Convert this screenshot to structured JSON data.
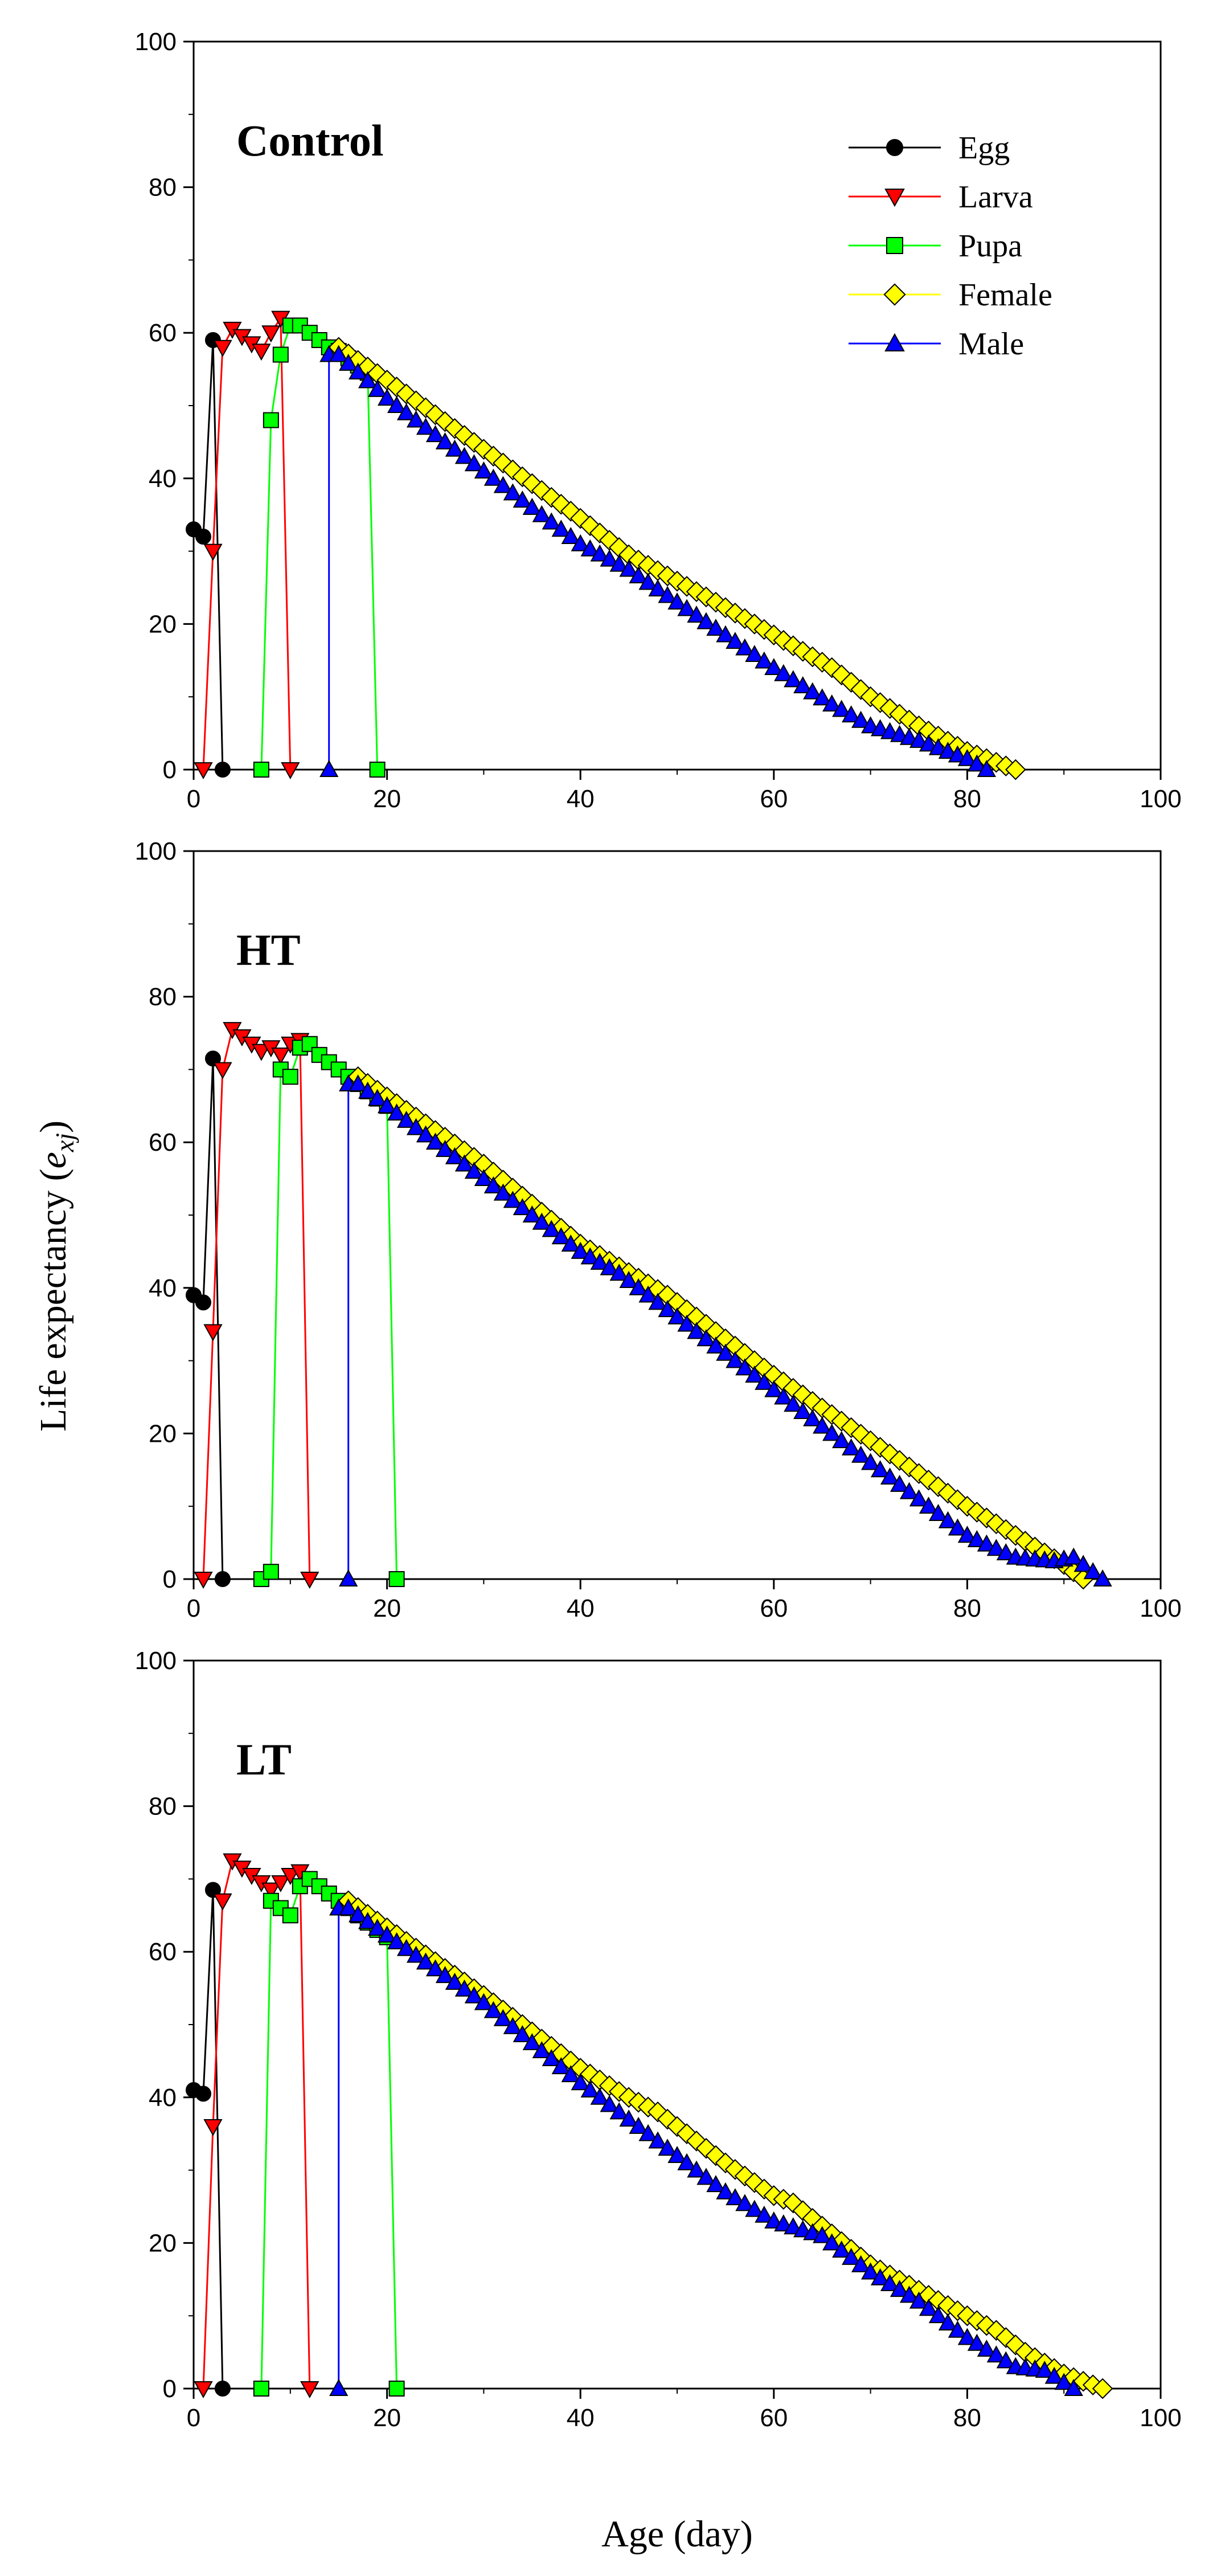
{
  "figure": {
    "xlabel": "Age (day)",
    "ylabel_prefix": "Life expectancy (",
    "ylabel_var": "e",
    "ylabel_sub": "xj",
    "ylabel_suffix": ")"
  },
  "legend": [
    {
      "name": "Egg",
      "color": "#000000",
      "marker": "circle"
    },
    {
      "name": "Larva",
      "color": "#ff0000",
      "marker": "triangle-down"
    },
    {
      "name": "Pupa",
      "color": "#00ff00",
      "marker": "square"
    },
    {
      "name": "Female",
      "color": "#ffff00",
      "marker": "diamond"
    },
    {
      "name": "Male",
      "color": "#0000ff",
      "marker": "triangle-up"
    }
  ],
  "chart_data": [
    {
      "type": "line",
      "title": "Control",
      "xlabel": "Age (day)",
      "ylabel": "Life expectancy (exj)",
      "xlim": [
        0,
        100
      ],
      "ylim": [
        0,
        100
      ],
      "xticks": [
        0,
        20,
        40,
        60,
        80,
        100
      ],
      "yticks": [
        0,
        20,
        40,
        60,
        80,
        100
      ],
      "series": [
        {
          "name": "Egg",
          "color": "#000000",
          "marker": "circle",
          "x": [
            0,
            1,
            2,
            3
          ],
          "y": [
            33,
            32,
            59,
            0
          ]
        },
        {
          "name": "Larva",
          "color": "#ff0000",
          "marker": "triangle-down",
          "x": [
            1,
            2,
            3,
            4,
            5,
            6,
            7,
            8,
            9,
            10
          ],
          "y": [
            0,
            30,
            58,
            60.5,
            59.5,
            58.5,
            57.5,
            60,
            62,
            0
          ]
        },
        {
          "name": "Pupa",
          "color": "#00ff00",
          "marker": "square",
          "x": [
            7,
            8,
            9,
            10,
            11,
            12,
            13,
            14,
            15,
            16,
            17,
            18,
            19
          ],
          "y": [
            0,
            48,
            57,
            61,
            61,
            60,
            59,
            58,
            57.5,
            56.5,
            55.5,
            54.5,
            0
          ]
        },
        {
          "name": "Female",
          "type": "linear_decline",
          "color": "#ffff00",
          "marker": "diamond",
          "start_age": 15,
          "end_age": 85,
          "anchors": [
            [
              15,
              58
            ],
            [
              20,
              53.5
            ],
            [
              30,
              44
            ],
            [
              39,
              35.5
            ],
            [
              45,
              29.5
            ],
            [
              54,
              23
            ],
            [
              60,
              18.5
            ],
            [
              66,
              14
            ],
            [
              70,
              10
            ],
            [
              75,
              6
            ],
            [
              80,
              2.5
            ],
            [
              85,
              0
            ]
          ]
        },
        {
          "name": "Male",
          "type": "linear_decline",
          "color": "#0000ff",
          "marker": "triangle-up",
          "start_age": 14,
          "end_age": 82,
          "pre_points": [
            [
              14,
              0
            ]
          ],
          "anchors": [
            [
              15,
              57
            ],
            [
              20,
              51
            ],
            [
              30,
              41
            ],
            [
              40,
              31
            ],
            [
              45,
              27.5
            ],
            [
              50,
              23
            ],
            [
              55,
              18.5
            ],
            [
              60,
              14
            ],
            [
              66,
              9
            ],
            [
              70,
              6
            ],
            [
              75,
              4
            ],
            [
              80,
              1.5
            ],
            [
              82,
              0
            ]
          ]
        }
      ]
    },
    {
      "type": "line",
      "title": "HT",
      "xlabel": "Age (day)",
      "ylabel": "Life expectancy (exj)",
      "xlim": [
        0,
        100
      ],
      "ylim": [
        0,
        100
      ],
      "xticks": [
        0,
        20,
        40,
        60,
        80,
        100
      ],
      "yticks": [
        0,
        20,
        40,
        60,
        80,
        100
      ],
      "series": [
        {
          "name": "Egg",
          "color": "#000000",
          "marker": "circle",
          "x": [
            0,
            1,
            2,
            3
          ],
          "y": [
            39,
            38,
            71.5,
            0
          ]
        },
        {
          "name": "Larva",
          "color": "#ff0000",
          "marker": "triangle-down",
          "x": [
            1,
            2,
            3,
            4,
            5,
            6,
            7,
            8,
            9,
            10,
            11,
            12
          ],
          "y": [
            0,
            34,
            70,
            75.5,
            74.5,
            73.5,
            72.5,
            73,
            72,
            73.5,
            74,
            0
          ]
        },
        {
          "name": "Pupa",
          "color": "#00ff00",
          "marker": "square",
          "x": [
            7,
            8,
            9,
            10,
            11,
            12,
            13,
            14,
            15,
            16,
            17,
            18,
            19,
            20,
            21
          ],
          "y": [
            0,
            1,
            70,
            69,
            73,
            73.5,
            72,
            71,
            70,
            69,
            68,
            67,
            66,
            65,
            0
          ]
        },
        {
          "name": "Female",
          "type": "linear_decline",
          "color": "#ffff00",
          "marker": "diamond",
          "start_age": 17,
          "end_age": 92,
          "anchors": [
            [
              17,
              69
            ],
            [
              30,
              57
            ],
            [
              40,
              46
            ],
            [
              49,
              39
            ],
            [
              55,
              33
            ],
            [
              60,
              28
            ],
            [
              70,
              19
            ],
            [
              80,
              10
            ],
            [
              85,
              6
            ],
            [
              90,
              2
            ],
            [
              92,
              0
            ]
          ]
        },
        {
          "name": "Male",
          "type": "linear_decline",
          "color": "#0000ff",
          "marker": "triangle-up",
          "start_age": 16,
          "end_age": 94,
          "pre_points": [
            [
              16,
              0
            ]
          ],
          "anchors": [
            [
              17,
              68
            ],
            [
              30,
              55
            ],
            [
              40,
              45
            ],
            [
              44,
              42
            ],
            [
              50,
              36
            ],
            [
              55,
              31
            ],
            [
              60,
              26
            ],
            [
              65,
              21
            ],
            [
              70,
              16
            ],
            [
              75,
              11
            ],
            [
              80,
              6
            ],
            [
              85,
              3
            ],
            [
              89,
              2.5
            ],
            [
              91,
              3
            ],
            [
              94,
              0
            ]
          ]
        }
      ]
    },
    {
      "type": "line",
      "title": "LT",
      "xlabel": "Age (day)",
      "ylabel": "Life expectancy (exj)",
      "xlim": [
        0,
        100
      ],
      "ylim": [
        0,
        100
      ],
      "xticks": [
        0,
        20,
        40,
        60,
        80,
        100
      ],
      "yticks": [
        0,
        20,
        40,
        60,
        80,
        100
      ],
      "series": [
        {
          "name": "Egg",
          "color": "#000000",
          "marker": "circle",
          "x": [
            0,
            1,
            2,
            3
          ],
          "y": [
            41,
            40.5,
            68.5,
            0
          ]
        },
        {
          "name": "Larva",
          "color": "#ff0000",
          "marker": "triangle-down",
          "x": [
            1,
            2,
            3,
            4,
            5,
            6,
            7,
            8,
            9,
            10,
            11,
            12
          ],
          "y": [
            0,
            36,
            67,
            72.5,
            71.5,
            70.5,
            69.5,
            68.5,
            69.5,
            70.5,
            71,
            0
          ]
        },
        {
          "name": "Pupa",
          "color": "#00ff00",
          "marker": "square",
          "x": [
            7,
            8,
            9,
            10,
            11,
            12,
            13,
            14,
            15,
            16,
            17,
            18,
            19,
            20,
            21
          ],
          "y": [
            0,
            67,
            66,
            65,
            69,
            70,
            69,
            68,
            67,
            66,
            65,
            64,
            63,
            62,
            0
          ]
        },
        {
          "name": "Female",
          "type": "linear_decline",
          "color": "#ffff00",
          "marker": "diamond",
          "start_age": 16,
          "end_age": 94,
          "anchors": [
            [
              16,
              67
            ],
            [
              30,
              54
            ],
            [
              40,
              44
            ],
            [
              45,
              40
            ],
            [
              48,
              38
            ],
            [
              55,
              31
            ],
            [
              60,
              26.5
            ],
            [
              62,
              25.5
            ],
            [
              70,
              17
            ],
            [
              80,
              10
            ],
            [
              83,
              8
            ],
            [
              86,
              5
            ],
            [
              90,
              2
            ],
            [
              94,
              0
            ]
          ]
        },
        {
          "name": "Male",
          "type": "linear_decline",
          "color": "#0000ff",
          "marker": "triangle-up",
          "start_age": 15,
          "end_age": 91,
          "pre_points": [
            [
              15,
              0
            ]
          ],
          "anchors": [
            [
              16,
              66
            ],
            [
              30,
              53
            ],
            [
              40,
              42
            ],
            [
              45,
              37
            ],
            [
              50,
              32
            ],
            [
              55,
              27
            ],
            [
              60,
              23
            ],
            [
              65,
              21
            ],
            [
              70,
              16
            ],
            [
              75,
              12
            ],
            [
              80,
              7
            ],
            [
              85,
              3
            ],
            [
              88,
              2.5
            ],
            [
              91,
              0
            ]
          ]
        }
      ]
    }
  ]
}
